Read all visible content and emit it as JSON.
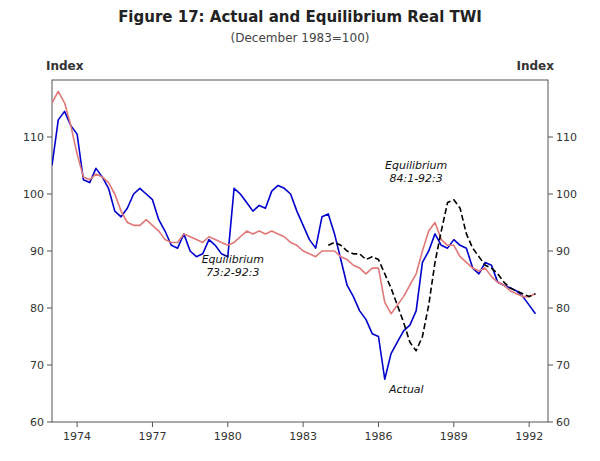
{
  "chart_data": {
    "type": "line",
    "title": "Figure 17: Actual and Equilibrium Real TWI",
    "subtitle": "(December 1983=100)",
    "y_label": "Index",
    "y2_label": "Index",
    "xlim": [
      1973.0,
      1992.75
    ],
    "xticks": [
      1974,
      1977,
      1980,
      1983,
      1986,
      1989,
      1992
    ],
    "ylim": [
      60,
      120
    ],
    "yticks": [
      60,
      70,
      80,
      90,
      100,
      110
    ],
    "y2lim": [
      60,
      120
    ],
    "y2ticks": [
      60,
      70,
      80,
      90,
      100,
      110
    ],
    "grid": false,
    "x": [
      1973.0,
      1973.25,
      1973.5,
      1973.75,
      1974.0,
      1974.25,
      1974.5,
      1974.75,
      1975.0,
      1975.25,
      1975.5,
      1975.75,
      1976.0,
      1976.25,
      1976.5,
      1976.75,
      1977.0,
      1977.25,
      1977.5,
      1977.75,
      1978.0,
      1978.25,
      1978.5,
      1978.75,
      1979.0,
      1979.25,
      1979.5,
      1979.75,
      1980.0,
      1980.25,
      1980.5,
      1980.75,
      1981.0,
      1981.25,
      1981.5,
      1981.75,
      1982.0,
      1982.25,
      1982.5,
      1982.75,
      1983.0,
      1983.25,
      1983.5,
      1983.75,
      1984.0,
      1984.25,
      1984.5,
      1984.75,
      1985.0,
      1985.25,
      1985.5,
      1985.75,
      1986.0,
      1986.25,
      1986.5,
      1986.75,
      1987.0,
      1987.25,
      1987.5,
      1987.75,
      1988.0,
      1988.25,
      1988.5,
      1988.75,
      1989.0,
      1989.25,
      1989.5,
      1989.75,
      1990.0,
      1990.25,
      1990.5,
      1990.75,
      1991.0,
      1991.25,
      1991.5,
      1991.75,
      1992.0,
      1992.25
    ],
    "series": [
      {
        "color": "#0000cc",
        "line_style": "solid",
        "values": [
          105.0,
          113.0,
          114.5,
          112.0,
          110.5,
          102.5,
          102.0,
          104.5,
          103.0,
          101.0,
          97.0,
          96.0,
          97.5,
          100.0,
          101.0,
          100.0,
          99.0,
          95.5,
          93.5,
          91.0,
          90.5,
          93.0,
          90.0,
          89.0,
          89.5,
          92.0,
          91.0,
          89.5,
          89.0,
          101.0,
          100.0,
          98.5,
          97.0,
          98.0,
          97.5,
          100.5,
          101.5,
          101.0,
          100.0,
          97.0,
          94.5,
          92.0,
          90.5,
          96.0,
          96.5,
          93.0,
          88.5,
          84.0,
          82.0,
          79.5,
          78.0,
          75.5,
          75.0,
          67.5,
          72.0,
          74.0,
          76.0,
          77.0,
          79.5,
          88.0,
          90.0,
          93.0,
          91.0,
          90.5,
          92.0,
          91.0,
          90.5,
          87.0,
          86.0,
          88.0,
          87.5,
          84.5,
          84.0,
          83.5,
          83.0,
          82.0,
          80.5,
          79.0
        ]
      },
      {
        "color": "#e07878",
        "line_style": "solid",
        "values": [
          116.0,
          118.0,
          116.0,
          112.0,
          107.0,
          103.0,
          102.5,
          103.5,
          103.0,
          102.0,
          100.0,
          97.0,
          95.0,
          94.5,
          94.5,
          95.5,
          94.5,
          93.5,
          92.0,
          91.5,
          91.5,
          93.0,
          92.5,
          92.0,
          91.5,
          92.5,
          92.0,
          91.5,
          91.0,
          91.5,
          92.5,
          93.5,
          93.0,
          93.5,
          93.0,
          93.5,
          93.0,
          92.5,
          91.5,
          91.0,
          90.0,
          89.5,
          89.0,
          90.0,
          90.0,
          90.0,
          89.0,
          88.5,
          87.5,
          87.0,
          86.0,
          87.0,
          87.0,
          81.0,
          79.0,
          80.5,
          82.0,
          84.0,
          86.0,
          90.0,
          93.5,
          95.0,
          92.0,
          91.0,
          91.0,
          89.0,
          88.0,
          87.0,
          86.5,
          87.0,
          85.5,
          84.5,
          84.0,
          83.0,
          82.5,
          82.0,
          82.0,
          82.5
        ]
      },
      {
        "color": "#000000",
        "line_style": "dashed",
        "values": [
          null,
          null,
          null,
          null,
          null,
          null,
          null,
          null,
          null,
          null,
          null,
          null,
          null,
          null,
          null,
          null,
          null,
          null,
          null,
          null,
          null,
          null,
          null,
          null,
          null,
          null,
          null,
          null,
          null,
          null,
          null,
          null,
          null,
          null,
          null,
          null,
          null,
          null,
          null,
          null,
          null,
          null,
          null,
          null,
          91.0,
          91.5,
          91.0,
          90.0,
          89.5,
          89.5,
          88.5,
          89.0,
          88.5,
          86.0,
          83.5,
          80.5,
          77.5,
          74.0,
          72.5,
          75.0,
          80.5,
          88.0,
          93.5,
          98.5,
          99.0,
          97.5,
          93.0,
          90.5,
          89.0,
          87.5,
          87.0,
          86.0,
          84.5,
          83.5,
          83.0,
          82.5,
          82.0,
          82.5
        ]
      }
    ],
    "annotations": [
      {
        "text": "Equilibrium\n73:2-92:3",
        "x": 1980.2,
        "y": 87.5
      },
      {
        "text": "Equilibrium\n84:1-92:3",
        "x": 1987.5,
        "y": 104.0
      },
      {
        "text": "Actual",
        "x": 1986.3,
        "y": 67.5
      }
    ]
  }
}
